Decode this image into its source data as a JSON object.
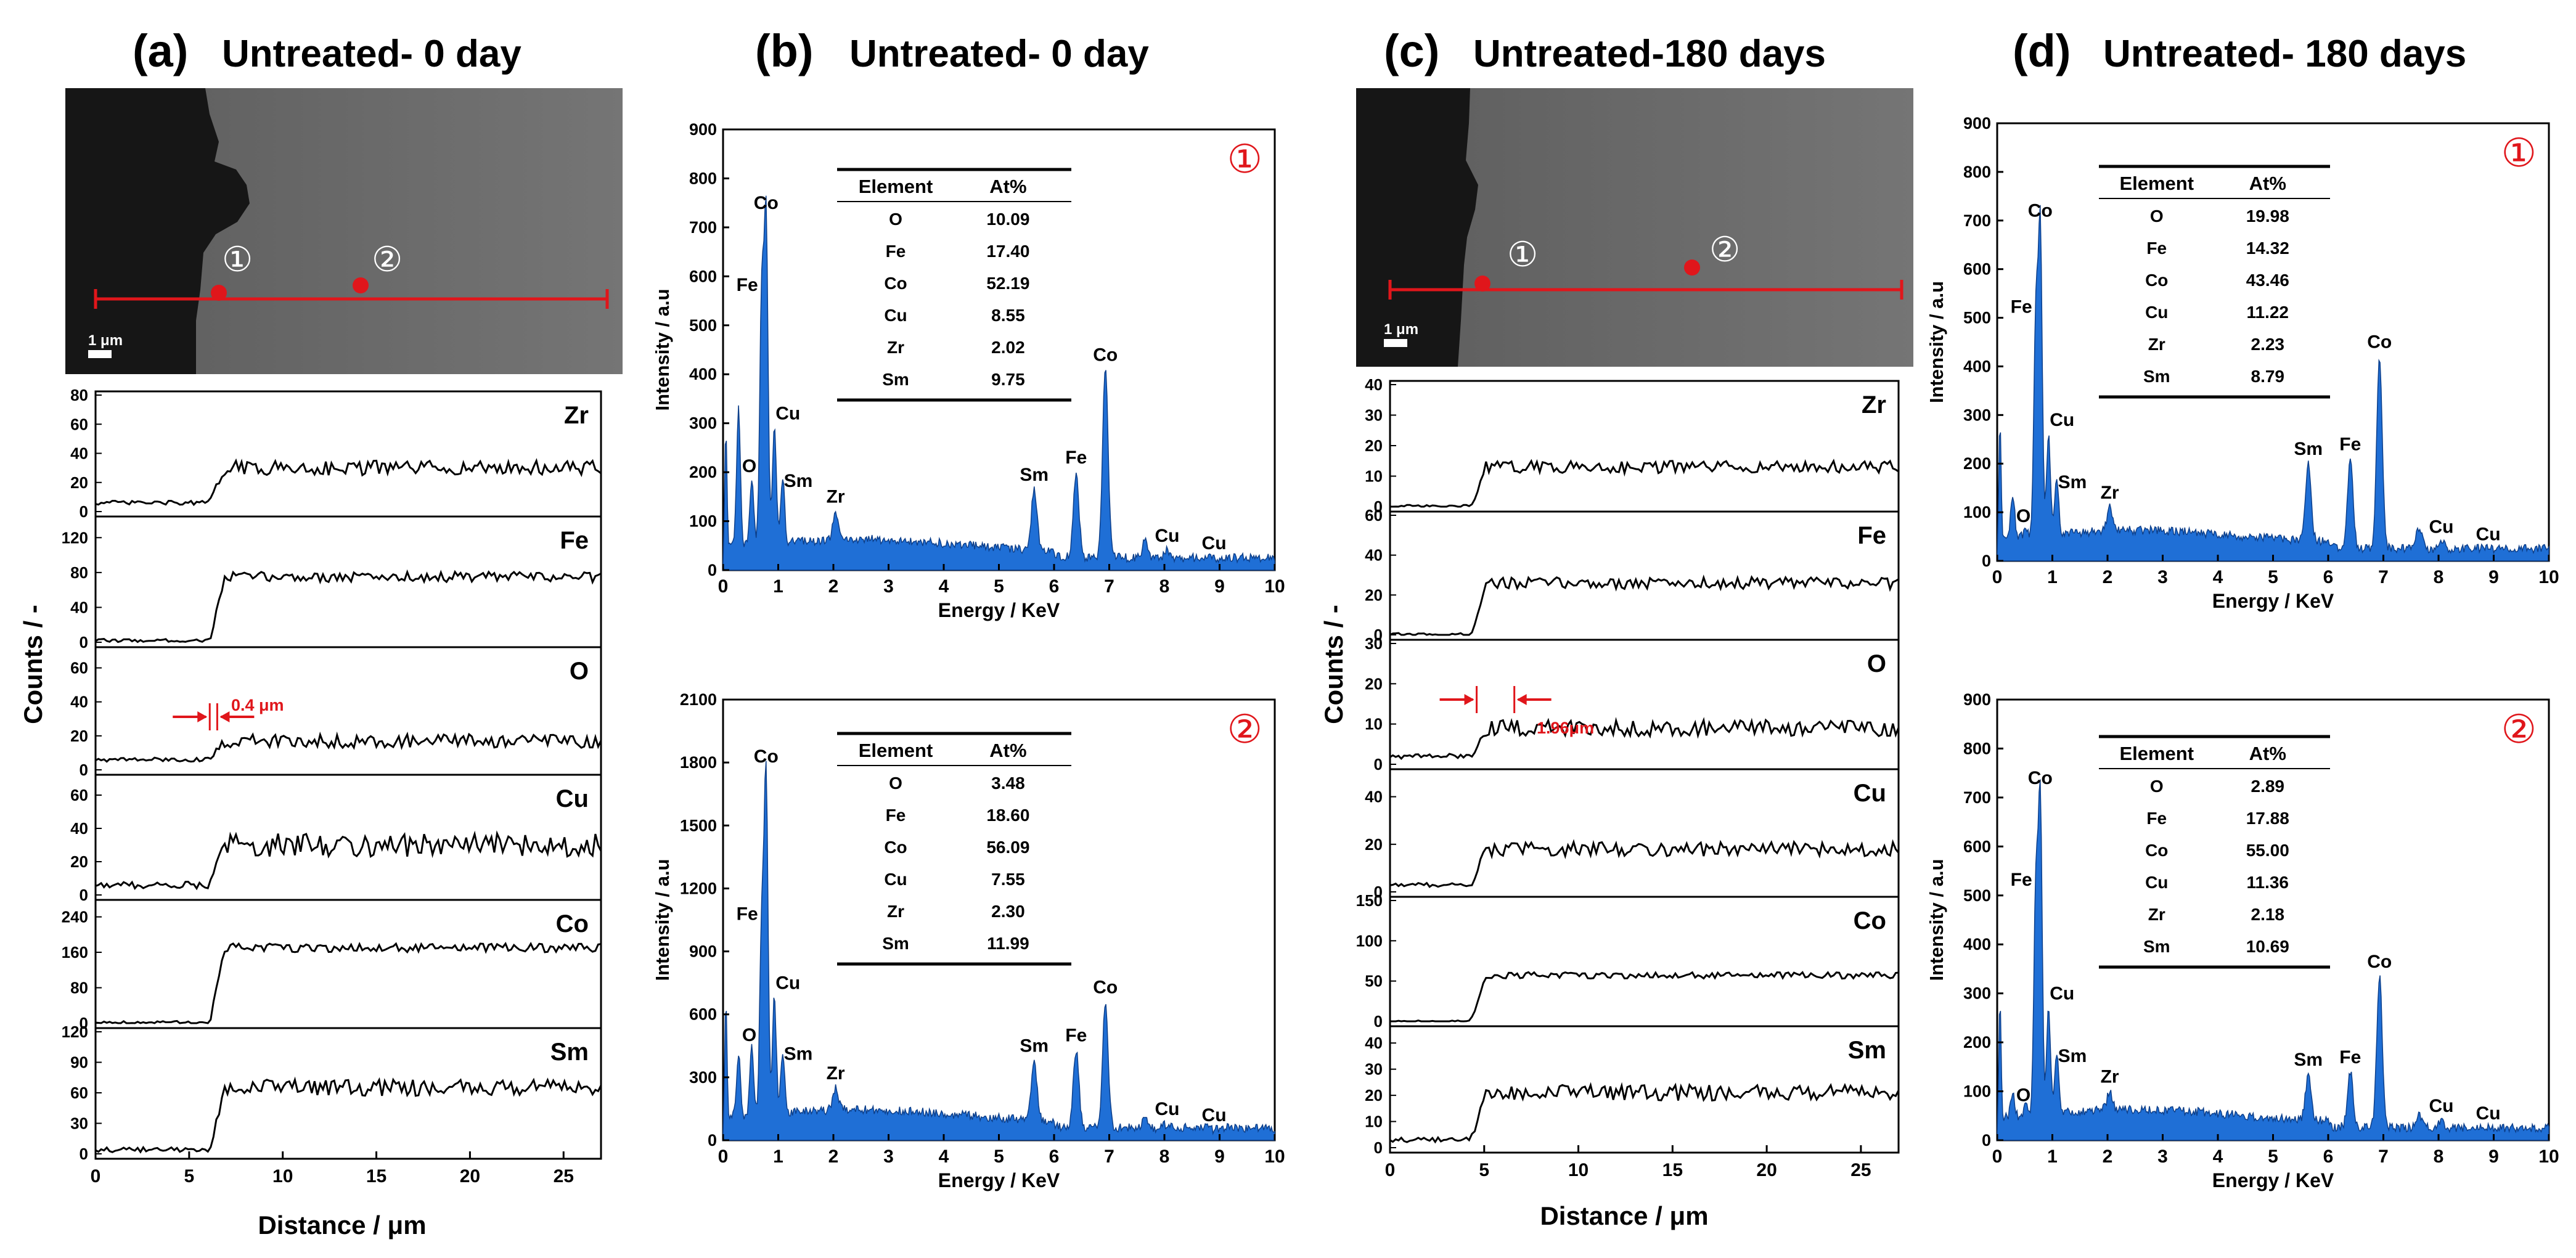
{
  "colors": {
    "spectrum_fill": "#1f6fd6",
    "spectrum_edge": "#0d3f8a",
    "marker": "#e0161b",
    "axis": "#000000",
    "sem_bg": "#6f6f6f",
    "sem_dark": "#161616"
  },
  "panels": {
    "a": {
      "label": "(a)",
      "title": "Untreated- 0 day",
      "scalebar": "1 μm",
      "point1": "①",
      "point2": "②",
      "ylabel": "Counts / -",
      "xlabel": "Distance / μm",
      "annotation": "0.4 μm"
    },
    "b": {
      "label": "(b)",
      "title": "Untreated- 0 day"
    },
    "c": {
      "label": "(c)",
      "title": "Untreated-180 days",
      "scalebar": "1 μm",
      "point1": "①",
      "point2": "②",
      "ylabel": "Counts / -",
      "xlabel": "Distance / μm",
      "annotation": "1.96μm"
    },
    "d": {
      "label": "(d)",
      "title": "Untreated- 180 days"
    }
  },
  "chart_data": [
    {
      "id": "a_linescan",
      "type": "line",
      "title": "Untreated- 0 day",
      "xlabel": "Distance / μm",
      "ylabel": "Counts / -",
      "xlim": [
        0,
        27
      ],
      "xticks": [
        0,
        5,
        10,
        15,
        20,
        25
      ],
      "step_position_um": 6.3,
      "note": "element line-scan profiles across interface",
      "series": [
        {
          "name": "Zr",
          "ylim": [
            0,
            80
          ],
          "yticks": [
            0,
            20,
            40,
            60,
            80
          ],
          "before": 6,
          "after": 30,
          "noise": 5
        },
        {
          "name": "Fe",
          "ylim": [
            0,
            140
          ],
          "yticks": [
            0,
            40,
            80,
            120
          ],
          "before": 2,
          "after": 75,
          "noise": 6
        },
        {
          "name": "O",
          "ylim": [
            0,
            70
          ],
          "yticks": [
            0,
            20,
            40,
            60
          ],
          "before": 6,
          "after": 17,
          "noise": 4
        },
        {
          "name": "Cu",
          "ylim": [
            0,
            70
          ],
          "yticks": [
            0,
            20,
            40,
            60
          ],
          "before": 6,
          "after": 30,
          "noise": 7
        },
        {
          "name": "Co",
          "ylim": [
            0,
            270
          ],
          "yticks": [
            0,
            80,
            160,
            240
          ],
          "before": 2,
          "after": 170,
          "noise": 10
        },
        {
          "name": "Sm",
          "ylim": [
            0,
            120
          ],
          "yticks": [
            0,
            30,
            60,
            90,
            120
          ],
          "before": 4,
          "after": 65,
          "noise": 8
        }
      ]
    },
    {
      "id": "c_linescan",
      "type": "line",
      "title": "Untreated-180 days",
      "xlabel": "Distance / μm",
      "ylabel": "Counts / -",
      "xlim": [
        0,
        27
      ],
      "xticks": [
        0,
        5,
        10,
        15,
        20,
        25
      ],
      "step_position_um": 4.5,
      "note": "element line-scan profiles across interface",
      "series": [
        {
          "name": "Zr",
          "ylim": [
            0,
            40
          ],
          "yticks": [
            0,
            10,
            20,
            30,
            40
          ],
          "before": 0,
          "after": 13,
          "noise": 2
        },
        {
          "name": "Fe",
          "ylim": [
            0,
            60
          ],
          "yticks": [
            0,
            20,
            40,
            60
          ],
          "before": 0,
          "after": 26,
          "noise": 3
        },
        {
          "name": "O",
          "ylim": [
            0,
            30
          ],
          "yticks": [
            0,
            10,
            20,
            30
          ],
          "before": 2,
          "after": 9,
          "noise": 2
        },
        {
          "name": "Cu",
          "ylim": [
            0,
            50
          ],
          "yticks": [
            0,
            20,
            40
          ],
          "before": 3,
          "after": 18,
          "noise": 3
        },
        {
          "name": "Co",
          "ylim": [
            0,
            150
          ],
          "yticks": [
            0,
            50,
            100,
            150
          ],
          "before": 0,
          "after": 57,
          "noise": 4
        },
        {
          "name": "Sm",
          "ylim": [
            0,
            45
          ],
          "yticks": [
            0,
            10,
            20,
            30,
            40
          ],
          "before": 3,
          "after": 21,
          "noise": 3
        }
      ]
    },
    {
      "id": "b1",
      "type": "area",
      "title": "Untreated- 0 day",
      "marker": "①",
      "xlabel": "Energy / KeV",
      "ylabel": "Intensity / a.u",
      "xlim": [
        0,
        10
      ],
      "xticks": [
        0,
        1,
        2,
        3,
        4,
        5,
        6,
        7,
        8,
        9,
        10
      ],
      "ylim": [
        0,
        900
      ],
      "yticks": [
        0,
        100,
        200,
        300,
        400,
        500,
        600,
        700,
        800,
        900
      ],
      "peaks": [
        {
          "x": 0.28,
          "y": 330,
          "label": ""
        },
        {
          "x": 0.52,
          "y": 190,
          "label": "O"
        },
        {
          "x": 0.7,
          "y": 570,
          "label": "Fe"
        },
        {
          "x": 0.78,
          "y": 720,
          "label": "Co"
        },
        {
          "x": 0.93,
          "y": 290,
          "label": "Cu"
        },
        {
          "x": 1.08,
          "y": 190,
          "label": "Sm"
        },
        {
          "x": 2.04,
          "y": 120,
          "label": "Zr"
        },
        {
          "x": 5.64,
          "y": 165,
          "label": "Sm"
        },
        {
          "x": 6.4,
          "y": 200,
          "label": "Fe"
        },
        {
          "x": 6.93,
          "y": 410,
          "label": "Co"
        },
        {
          "x": 7.65,
          "y": 60,
          "label": ""
        },
        {
          "x": 8.05,
          "y": 40,
          "label": "Cu"
        },
        {
          "x": 8.9,
          "y": 25,
          "label": "Cu"
        }
      ],
      "table": {
        "headers": [
          "Element",
          "At%"
        ],
        "rows": [
          [
            "O",
            "10.09"
          ],
          [
            "Fe",
            "17.40"
          ],
          [
            "Co",
            "52.19"
          ],
          [
            "Cu",
            "8.55"
          ],
          [
            "Zr",
            "2.02"
          ],
          [
            "Sm",
            "9.75"
          ]
        ]
      }
    },
    {
      "id": "b2",
      "type": "area",
      "title": "Untreated- 0 day",
      "marker": "②",
      "xlabel": "Energy / KeV",
      "ylabel": "Intensity / a.u",
      "xlim": [
        0,
        10
      ],
      "xticks": [
        0,
        1,
        2,
        3,
        4,
        5,
        6,
        7,
        8,
        9,
        10
      ],
      "ylim": [
        0,
        2100
      ],
      "yticks": [
        0,
        300,
        600,
        900,
        1200,
        1500,
        1800,
        2100
      ],
      "peaks": [
        {
          "x": 0.28,
          "y": 420,
          "label": ""
        },
        {
          "x": 0.52,
          "y": 450,
          "label": "O"
        },
        {
          "x": 0.7,
          "y": 1050,
          "label": "Fe"
        },
        {
          "x": 0.78,
          "y": 1760,
          "label": "Co"
        },
        {
          "x": 0.93,
          "y": 680,
          "label": "Cu"
        },
        {
          "x": 1.08,
          "y": 430,
          "label": "Sm"
        },
        {
          "x": 2.04,
          "y": 250,
          "label": "Zr"
        },
        {
          "x": 5.64,
          "y": 380,
          "label": "Sm"
        },
        {
          "x": 6.4,
          "y": 430,
          "label": "Fe"
        },
        {
          "x": 6.93,
          "y": 660,
          "label": "Co"
        },
        {
          "x": 7.65,
          "y": 110,
          "label": ""
        },
        {
          "x": 8.05,
          "y": 80,
          "label": "Cu"
        },
        {
          "x": 8.9,
          "y": 50,
          "label": "Cu"
        }
      ],
      "table": {
        "headers": [
          "Element",
          "At%"
        ],
        "rows": [
          [
            "O",
            "3.48"
          ],
          [
            "Fe",
            "18.60"
          ],
          [
            "Co",
            "56.09"
          ],
          [
            "Cu",
            "7.55"
          ],
          [
            "Zr",
            "2.30"
          ],
          [
            "Sm",
            "11.99"
          ]
        ]
      }
    },
    {
      "id": "d1",
      "type": "area",
      "title": "Untreated- 180 days",
      "marker": "①",
      "xlabel": "Energy / KeV",
      "ylabel": "Intensity / a.u",
      "xlim": [
        0,
        10
      ],
      "xticks": [
        0,
        1,
        2,
        3,
        4,
        5,
        6,
        7,
        8,
        9,
        10
      ],
      "ylim": [
        0,
        900
      ],
      "yticks": [
        0,
        100,
        200,
        300,
        400,
        500,
        600,
        700,
        800,
        900
      ],
      "peaks": [
        {
          "x": 0.28,
          "y": 140,
          "label": ""
        },
        {
          "x": 0.52,
          "y": 70,
          "label": "O"
        },
        {
          "x": 0.7,
          "y": 510,
          "label": "Fe"
        },
        {
          "x": 0.78,
          "y": 690,
          "label": "Co"
        },
        {
          "x": 0.93,
          "y": 260,
          "label": "Cu"
        },
        {
          "x": 1.08,
          "y": 170,
          "label": "Sm"
        },
        {
          "x": 2.04,
          "y": 110,
          "label": "Zr"
        },
        {
          "x": 5.64,
          "y": 200,
          "label": "Sm"
        },
        {
          "x": 6.4,
          "y": 210,
          "label": "Fe"
        },
        {
          "x": 6.93,
          "y": 420,
          "label": "Co"
        },
        {
          "x": 7.65,
          "y": 70,
          "label": ""
        },
        {
          "x": 8.05,
          "y": 40,
          "label": "Cu"
        },
        {
          "x": 8.9,
          "y": 25,
          "label": "Cu"
        }
      ],
      "table": {
        "headers": [
          "Element",
          "At%"
        ],
        "rows": [
          [
            "O",
            "19.98"
          ],
          [
            "Fe",
            "14.32"
          ],
          [
            "Co",
            "43.46"
          ],
          [
            "Cu",
            "11.22"
          ],
          [
            "Zr",
            "2.23"
          ],
          [
            "Sm",
            "8.79"
          ]
        ]
      }
    },
    {
      "id": "d2",
      "type": "area",
      "title": "Untreated- 180 days",
      "marker": "②",
      "xlabel": "Energy / KeV",
      "ylabel": "Intensity / a.u",
      "xlim": [
        0,
        10
      ],
      "xticks": [
        0,
        1,
        2,
        3,
        4,
        5,
        6,
        7,
        8,
        9,
        10
      ],
      "ylim": [
        0,
        900
      ],
      "yticks": [
        0,
        100,
        200,
        300,
        400,
        500,
        600,
        700,
        800,
        900
      ],
      "peaks": [
        {
          "x": 0.28,
          "y": 100,
          "label": ""
        },
        {
          "x": 0.52,
          "y": 70,
          "label": "O"
        },
        {
          "x": 0.7,
          "y": 520,
          "label": "Fe"
        },
        {
          "x": 0.78,
          "y": 710,
          "label": "Co"
        },
        {
          "x": 0.93,
          "y": 270,
          "label": "Cu"
        },
        {
          "x": 1.08,
          "y": 180,
          "label": "Sm"
        },
        {
          "x": 2.04,
          "y": 100,
          "label": "Zr"
        },
        {
          "x": 5.64,
          "y": 135,
          "label": "Sm"
        },
        {
          "x": 6.4,
          "y": 140,
          "label": "Fe"
        },
        {
          "x": 6.93,
          "y": 335,
          "label": "Co"
        },
        {
          "x": 7.65,
          "y": 50,
          "label": ""
        },
        {
          "x": 8.05,
          "y": 40,
          "label": "Cu"
        },
        {
          "x": 8.9,
          "y": 25,
          "label": "Cu"
        }
      ],
      "table": {
        "headers": [
          "Element",
          "At%"
        ],
        "rows": [
          [
            "O",
            "2.89"
          ],
          [
            "Fe",
            "17.88"
          ],
          [
            "Co",
            "55.00"
          ],
          [
            "Cu",
            "11.36"
          ],
          [
            "Zr",
            "2.18"
          ],
          [
            "Sm",
            "10.69"
          ]
        ]
      }
    }
  ]
}
